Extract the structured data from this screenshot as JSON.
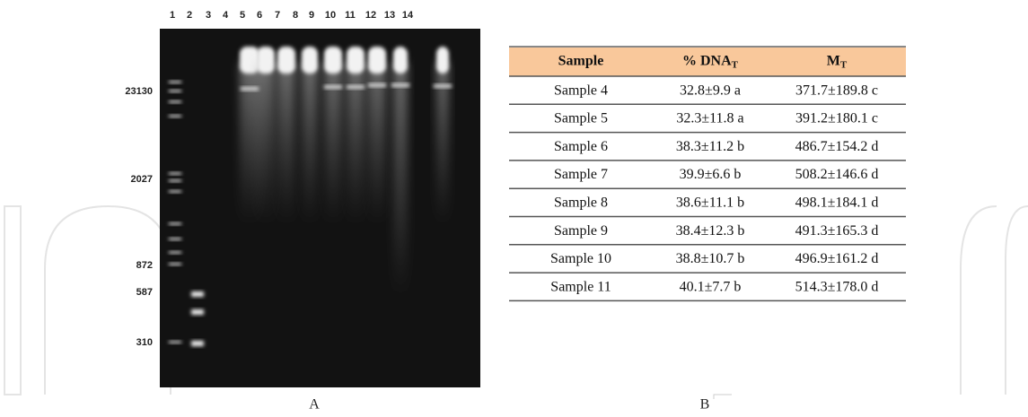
{
  "gel": {
    "lanes": [
      "1",
      "2",
      "3",
      "4",
      "5",
      "6",
      "7",
      "8",
      "9",
      "10",
      "11",
      "12",
      "13",
      "14"
    ],
    "markers": [
      "23130",
      "2027",
      "872",
      "587",
      "310"
    ]
  },
  "table": {
    "header": [
      {
        "text": "Sample"
      },
      {
        "text": "% DNA",
        "sub": "T"
      },
      {
        "text": "M",
        "sub": "T"
      }
    ],
    "rows": [
      [
        "Sample 4",
        "32.8±9.9 a",
        "371.7±189.8 c"
      ],
      [
        "Sample 5",
        "32.3±11.8 a",
        "391.2±180.1 c"
      ],
      [
        "Sample 6",
        "38.3±11.2 b",
        "486.7±154.2 d"
      ],
      [
        "Sample 7",
        "39.9±6.6 b",
        "508.2±146.6 d"
      ],
      [
        "Sample 8",
        "38.6±11.1 b",
        "498.1±184.1 d"
      ],
      [
        "Sample 9",
        "38.4±12.3 b",
        "491.3±165.3 d"
      ],
      [
        "Sample 10",
        "38.8±10.7 b",
        "496.9±161.2 d"
      ],
      [
        "Sample 11",
        "40.1±7.7 b",
        "514.3±178.0 d"
      ]
    ]
  },
  "panels": [
    "A",
    "B"
  ]
}
